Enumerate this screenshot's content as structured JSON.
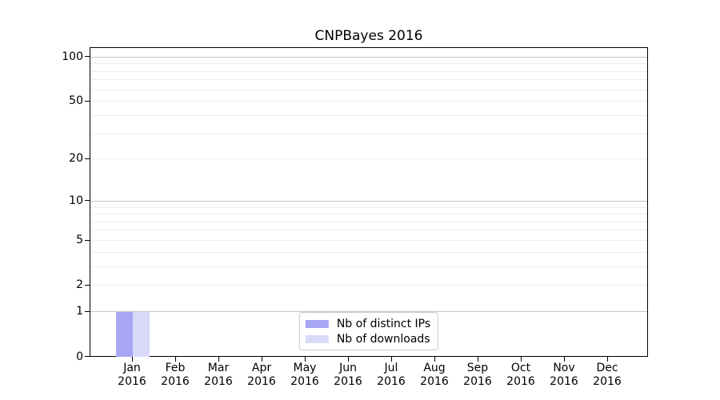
{
  "figure": {
    "background": "#ffffff"
  },
  "chart_data": {
    "type": "bar",
    "title": "CNPBayes 2016",
    "categories": [
      "Jan",
      "Feb",
      "Mar",
      "Apr",
      "May",
      "Jun",
      "Jul",
      "Aug",
      "Sep",
      "Oct",
      "Nov",
      "Dec"
    ],
    "category_year": "2016",
    "series": [
      {
        "name": "Nb of distinct IPs",
        "color": "#a6a6f4",
        "values": [
          1,
          0,
          0,
          0,
          0,
          0,
          0,
          0,
          0,
          0,
          0,
          0
        ]
      },
      {
        "name": "Nb of downloads",
        "color": "#d9d9f9",
        "values": [
          1,
          0,
          0,
          0,
          0,
          0,
          0,
          0,
          0,
          0,
          0,
          0
        ]
      }
    ],
    "xlabel": "",
    "ylabel": "",
    "y_scale": "log1p",
    "ylim": [
      0,
      115
    ],
    "y_ticks": [
      0,
      1,
      2,
      5,
      10,
      20,
      50,
      100
    ],
    "y_major_gridlines": [
      1,
      10,
      100
    ],
    "y_minor_gridlines": [
      2,
      3,
      4,
      5,
      6,
      7,
      8,
      9,
      20,
      30,
      40,
      50,
      60,
      70,
      80,
      90
    ],
    "grid": "horizontal",
    "legend_position": "lower center"
  },
  "colors": {
    "major_grid": "#c4c4c4",
    "minor_grid": "#ececec",
    "axis": "#000000",
    "legend_border": "#cccccc",
    "text": "#000000"
  }
}
